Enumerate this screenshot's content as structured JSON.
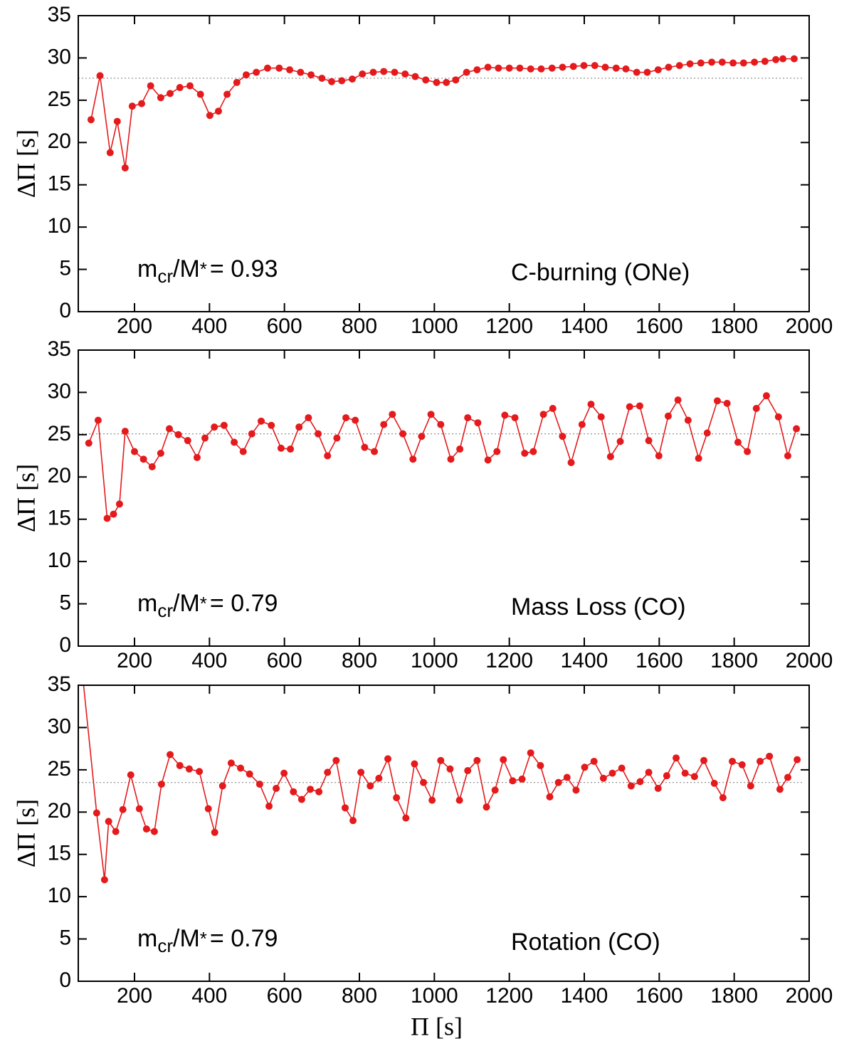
{
  "chart_data": [
    {
      "type": "line",
      "ylabel": "ΔΠ [s]",
      "annotation_parts": [
        "m",
        "cr",
        "/M",
        "*",
        "= 0.93"
      ],
      "label": "C-burning (ONe)",
      "color": "#e41a1c",
      "reference_line": 27.6,
      "xlim": [
        50,
        2000
      ],
      "ylim": [
        0,
        35
      ],
      "xticks": [
        200,
        400,
        600,
        800,
        1000,
        1200,
        1400,
        1600,
        1800,
        2000
      ],
      "yticks": [
        0,
        5,
        10,
        15,
        20,
        25,
        30,
        35
      ],
      "x": [
        84,
        108,
        135,
        154,
        175,
        194,
        219,
        243,
        270,
        295,
        321,
        348,
        376,
        401,
        424,
        447,
        473,
        498,
        525,
        555,
        586,
        614,
        643,
        671,
        700,
        726,
        753,
        781,
        808,
        837,
        865,
        894,
        922,
        949,
        977,
        1006,
        1032,
        1057,
        1086,
        1114,
        1143,
        1171,
        1200,
        1228,
        1257,
        1285,
        1314,
        1342,
        1371,
        1399,
        1428,
        1456,
        1485,
        1511,
        1540,
        1568,
        1597,
        1625,
        1654,
        1682,
        1711,
        1740,
        1768,
        1797,
        1825,
        1854,
        1882,
        1911,
        1930,
        1960
      ],
      "values": [
        22.7,
        27.9,
        18.8,
        22.5,
        17.0,
        24.3,
        24.6,
        26.7,
        25.3,
        25.8,
        26.5,
        26.7,
        25.7,
        23.2,
        23.7,
        25.7,
        27.1,
        28.0,
        28.3,
        28.8,
        28.8,
        28.6,
        28.3,
        28.0,
        27.6,
        27.2,
        27.3,
        27.5,
        28.1,
        28.3,
        28.4,
        28.3,
        28.1,
        27.8,
        27.4,
        27.1,
        27.1,
        27.4,
        28.3,
        28.6,
        28.9,
        28.8,
        28.8,
        28.8,
        28.7,
        28.7,
        28.8,
        28.9,
        29.0,
        29.1,
        29.1,
        28.9,
        28.8,
        28.7,
        28.3,
        28.3,
        28.6,
        28.9,
        29.1,
        29.3,
        29.4,
        29.5,
        29.5,
        29.4,
        29.4,
        29.5,
        29.6,
        29.8,
        29.9,
        29.9
      ]
    },
    {
      "type": "line",
      "ylabel": "ΔΠ [s]",
      "annotation_parts": [
        "m",
        "cr",
        "/M",
        "*",
        "= 0.79"
      ],
      "label": "Mass Loss (CO)",
      "color": "#e41a1c",
      "reference_line": 25.1,
      "xlim": [
        50,
        2000
      ],
      "ylim": [
        0,
        35
      ],
      "xticks": [
        200,
        400,
        600,
        800,
        1000,
        1200,
        1400,
        1600,
        1800,
        2000
      ],
      "yticks": [
        0,
        5,
        10,
        15,
        20,
        25,
        30,
        35
      ],
      "x": [
        78,
        103,
        127,
        144,
        160,
        175,
        200,
        224,
        247,
        270,
        293,
        317,
        342,
        367,
        388,
        413,
        439,
        466,
        490,
        513,
        538,
        565,
        591,
        616,
        639,
        664,
        690,
        715,
        740,
        764,
        789,
        814,
        840,
        865,
        888,
        916,
        943,
        966,
        991,
        1017,
        1044,
        1068,
        1089,
        1116,
        1143,
        1167,
        1188,
        1215,
        1241,
        1264,
        1291,
        1316,
        1342,
        1365,
        1394,
        1418,
        1445,
        1470,
        1496,
        1521,
        1548,
        1572,
        1599,
        1624,
        1650,
        1677,
        1705,
        1728,
        1755,
        1781,
        1810,
        1835,
        1859,
        1886,
        1918,
        1943,
        1966
      ],
      "values": [
        24.0,
        26.7,
        15.1,
        15.6,
        16.8,
        25.4,
        23.0,
        22.1,
        21.2,
        22.8,
        25.7,
        25.0,
        24.3,
        22.3,
        24.6,
        25.9,
        26.1,
        24.1,
        23.0,
        25.1,
        26.6,
        26.1,
        23.4,
        23.3,
        25.9,
        27.0,
        25.1,
        22.5,
        24.6,
        27.0,
        26.7,
        23.5,
        23.0,
        26.2,
        27.4,
        25.1,
        22.1,
        24.8,
        27.4,
        26.2,
        22.1,
        23.3,
        27.0,
        26.4,
        22.0,
        23.0,
        27.3,
        27.0,
        22.8,
        23.0,
        27.4,
        28.1,
        24.8,
        21.7,
        26.2,
        28.6,
        27.1,
        22.4,
        24.2,
        28.3,
        28.4,
        24.3,
        22.5,
        27.2,
        29.1,
        26.7,
        22.2,
        25.2,
        29.0,
        28.7,
        24.1,
        23.0,
        28.1,
        29.6,
        27.1,
        22.5,
        25.7
      ]
    },
    {
      "type": "line",
      "ylabel": "ΔΠ [s]",
      "xlabel": "Π [s]",
      "annotation_parts": [
        "m",
        "cr",
        "/M",
        "*",
        "= 0.79"
      ],
      "label": "Rotation (CO)",
      "color": "#e41a1c",
      "reference_line": 23.5,
      "xlim": [
        50,
        2000
      ],
      "ylim": [
        0,
        35
      ],
      "xticks": [
        200,
        400,
        600,
        800,
        1000,
        1200,
        1400,
        1600,
        1800,
        2000
      ],
      "yticks": [
        0,
        5,
        10,
        15,
        20,
        25,
        30,
        35
      ],
      "x": [
        63,
        99,
        120,
        131,
        150,
        169,
        190,
        213,
        232,
        253,
        272,
        295,
        321,
        346,
        373,
        397,
        414,
        435,
        458,
        483,
        507,
        534,
        559,
        578,
        599,
        624,
        646,
        669,
        692,
        715,
        738,
        762,
        783,
        804,
        829,
        852,
        876,
        899,
        924,
        947,
        971,
        994,
        1017,
        1042,
        1067,
        1089,
        1114,
        1139,
        1162,
        1184,
        1209,
        1234,
        1257,
        1283,
        1308,
        1331,
        1354,
        1378,
        1401,
        1426,
        1451,
        1475,
        1500,
        1525,
        1549,
        1572,
        1597,
        1620,
        1645,
        1669,
        1694,
        1719,
        1747,
        1770,
        1795,
        1821,
        1844,
        1869,
        1894,
        1922,
        1943,
        1968
      ],
      "values": [
        35.5,
        19.9,
        12.0,
        18.9,
        17.7,
        20.3,
        24.4,
        20.4,
        18.0,
        17.7,
        23.3,
        26.8,
        25.5,
        25.1,
        24.8,
        20.4,
        17.6,
        23.1,
        25.8,
        25.2,
        24.5,
        23.3,
        20.7,
        22.8,
        24.6,
        22.4,
        21.5,
        22.7,
        22.4,
        24.7,
        26.1,
        20.5,
        19.0,
        24.7,
        23.1,
        24.0,
        26.3,
        21.7,
        19.3,
        25.7,
        23.5,
        21.4,
        26.1,
        25.1,
        21.4,
        24.9,
        26.1,
        20.6,
        22.6,
        26.2,
        23.7,
        23.9,
        27.0,
        25.5,
        21.8,
        23.5,
        24.1,
        22.6,
        25.3,
        26.0,
        24.0,
        24.6,
        25.2,
        23.1,
        23.6,
        24.7,
        22.8,
        24.3,
        26.4,
        24.6,
        24.2,
        26.1,
        23.4,
        21.7,
        26.0,
        25.6,
        23.1,
        26.0,
        26.6,
        22.7,
        24.1,
        26.2
      ]
    }
  ]
}
